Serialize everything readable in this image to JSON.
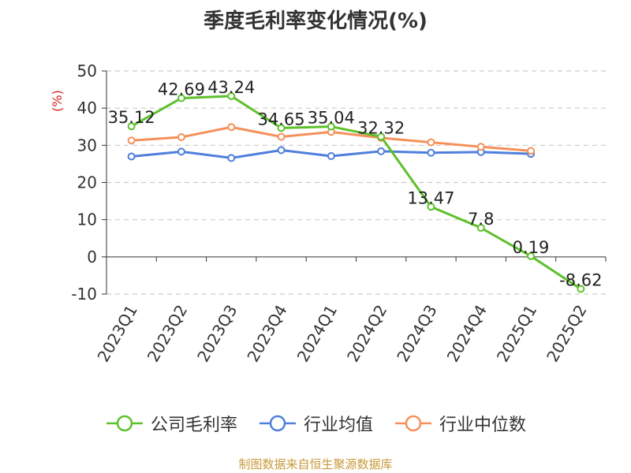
{
  "chart_data": {
    "type": "line",
    "title": "季度毛利率变化情况(%)",
    "ylabel": "(%)",
    "xlabel": "",
    "ylim": [
      -10,
      50
    ],
    "yticks": [
      -10,
      0,
      10,
      20,
      30,
      40,
      50
    ],
    "grid": true,
    "legend_position": "bottom",
    "categories": [
      "2023Q1",
      "2023Q2",
      "2023Q3",
      "2023Q4",
      "2024Q1",
      "2024Q2",
      "2024Q3",
      "2024Q4",
      "2025Q1",
      "2025Q2"
    ],
    "series": [
      {
        "name": "公司毛利率",
        "color": "#5ec12b",
        "values": [
          35.12,
          42.69,
          43.24,
          34.65,
          35.04,
          32.32,
          13.47,
          7.8,
          0.19,
          -8.62
        ],
        "labels": [
          "35.12",
          "42.69",
          "43.24",
          "34.65",
          "35.04",
          "32.32",
          "13.47",
          "7.8",
          "0.19",
          "-8.62"
        ]
      },
      {
        "name": "行业均值",
        "color": "#4f7fdc",
        "values": [
          27.0,
          28.3,
          26.6,
          28.7,
          27.1,
          28.4,
          28.0,
          28.2,
          27.7,
          null
        ]
      },
      {
        "name": "行业中位数",
        "color": "#f5905a",
        "values": [
          31.3,
          32.2,
          34.9,
          32.3,
          33.6,
          32.0,
          30.8,
          29.6,
          28.5,
          null
        ]
      }
    ]
  },
  "source": "制图数据来自恒生聚源数据库"
}
